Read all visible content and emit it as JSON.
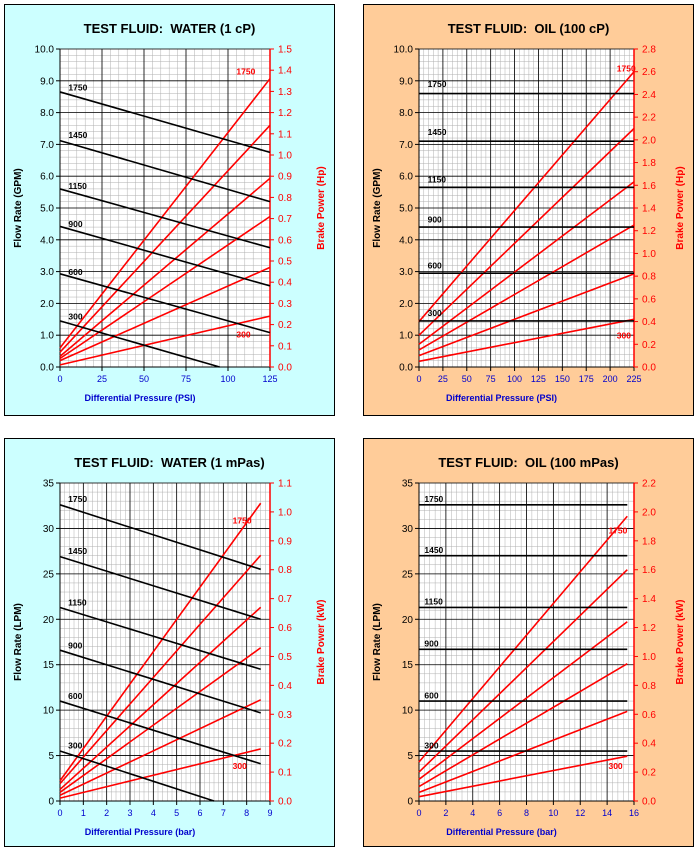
{
  "colors": {
    "water_panel_bg": "#ccffff",
    "oil_panel_bg": "#ffcc99",
    "plot_bg": "#ffffff",
    "flow_line": "#000000",
    "power_line": "#ff0000",
    "axis_left": "#000000",
    "axis_right": "#ff0000",
    "xlabel": "#0000cc"
  },
  "chart_data": [
    {
      "type": "line",
      "title": "TEST FLUID:  WATER (1 cP)",
      "xlabel": "Differential Pressure (PSI)",
      "ylabel": "Flow Rate (GPM)",
      "y2label": "Brake Power (Hp)",
      "xlim": [
        0,
        125
      ],
      "xticks": [
        "0",
        "25",
        "50",
        "75",
        "100",
        "125"
      ],
      "ylim": [
        0,
        10
      ],
      "yticks": [
        "0.0",
        "1.0",
        "2.0",
        "3.0",
        "4.0",
        "5.0",
        "6.0",
        "7.0",
        "8.0",
        "9.0",
        "10.0"
      ],
      "y2lim": [
        0,
        1.5
      ],
      "y2ticks": [
        "0.0",
        "0.1",
        "0.2",
        "0.3",
        "0.4",
        "0.5",
        "0.6",
        "0.7",
        "0.8",
        "0.9",
        "1.0",
        "1.1",
        "1.2",
        "1.3",
        "1.4",
        "1.5"
      ],
      "grid": true,
      "flow_series": [
        {
          "name": "1750",
          "x": [
            0,
            125
          ],
          "values": [
            8.65,
            6.75
          ]
        },
        {
          "name": "1450",
          "x": [
            0,
            125
          ],
          "values": [
            7.12,
            5.2
          ]
        },
        {
          "name": "1150",
          "x": [
            0,
            125
          ],
          "values": [
            5.6,
            3.75
          ]
        },
        {
          "name": "900",
          "x": [
            0,
            125
          ],
          "values": [
            4.42,
            2.55
          ]
        },
        {
          "name": "600",
          "x": [
            0,
            125
          ],
          "values": [
            2.93,
            1.08
          ]
        },
        {
          "name": "300",
          "x": [
            0,
            95
          ],
          "values": [
            1.45,
            0.0
          ]
        }
      ],
      "power_series": [
        {
          "name": "1750",
          "x": [
            0,
            125
          ],
          "values": [
            0.09,
            1.36
          ]
        },
        {
          "name": "1450",
          "x": [
            0,
            125
          ],
          "values": [
            0.07,
            1.14
          ]
        },
        {
          "name": "1150",
          "x": [
            0,
            125
          ],
          "values": [
            0.05,
            0.89
          ]
        },
        {
          "name": "900",
          "x": [
            0,
            125
          ],
          "values": [
            0.04,
            0.71
          ]
        },
        {
          "name": "600",
          "x": [
            0,
            125
          ],
          "values": [
            0.03,
            0.47
          ]
        },
        {
          "name": "300",
          "x": [
            0,
            125
          ],
          "values": [
            0.01,
            0.24
          ]
        }
      ],
      "annotations": [
        {
          "text": "1750",
          "color": "red",
          "x": 105,
          "y2": 1.38
        },
        {
          "text": "300",
          "color": "red",
          "x": 105,
          "y2": 0.14
        },
        {
          "text": "1750",
          "color": "black",
          "x": 5,
          "y": 8.7
        },
        {
          "text": "1450",
          "color": "black",
          "x": 5,
          "y": 7.2
        },
        {
          "text": "1150",
          "color": "black",
          "x": 5,
          "y": 5.6
        },
        {
          "text": "900",
          "color": "black",
          "x": 5,
          "y": 4.4
        },
        {
          "text": "600",
          "color": "black",
          "x": 5,
          "y": 2.9
        },
        {
          "text": "300",
          "color": "black",
          "x": 5,
          "y": 1.5
        }
      ]
    },
    {
      "type": "line",
      "title": "TEST FLUID:  OIL (100 cP)",
      "xlabel": "Differential Pressure (PSI)",
      "ylabel": "Flow Rate (GPM)",
      "y2label": "Brake Power (Hp)",
      "xlim": [
        0,
        225
      ],
      "xticks": [
        "0",
        "25",
        "50",
        "75",
        "100",
        "125",
        "150",
        "175",
        "200",
        "225"
      ],
      "ylim": [
        0,
        10
      ],
      "yticks": [
        "0.0",
        "1.0",
        "2.0",
        "3.0",
        "4.0",
        "5.0",
        "6.0",
        "7.0",
        "8.0",
        "9.0",
        "10.0"
      ],
      "y2lim": [
        0,
        2.8
      ],
      "y2ticks": [
        "0.0",
        "0.2",
        "0.4",
        "0.6",
        "0.8",
        "1.0",
        "1.2",
        "1.4",
        "1.6",
        "1.8",
        "2.0",
        "2.2",
        "2.4",
        "2.6",
        "2.8"
      ],
      "grid": true,
      "flow_series": [
        {
          "name": "1750",
          "x": [
            0,
            225
          ],
          "values": [
            8.6,
            8.6
          ]
        },
        {
          "name": "1450",
          "x": [
            0,
            225
          ],
          "values": [
            7.1,
            7.1
          ]
        },
        {
          "name": "1150",
          "x": [
            0,
            225
          ],
          "values": [
            5.65,
            5.65
          ]
        },
        {
          "name": "900",
          "x": [
            0,
            225
          ],
          "values": [
            4.4,
            4.4
          ]
        },
        {
          "name": "600",
          "x": [
            0,
            225
          ],
          "values": [
            2.95,
            2.95
          ]
        },
        {
          "name": "300",
          "x": [
            0,
            225
          ],
          "values": [
            1.45,
            1.45
          ]
        }
      ],
      "power_series": [
        {
          "name": "1750",
          "x": [
            0,
            225
          ],
          "values": [
            0.4,
            2.6
          ]
        },
        {
          "name": "1450",
          "x": [
            0,
            225
          ],
          "values": [
            0.28,
            2.1
          ]
        },
        {
          "name": "1150",
          "x": [
            0,
            225
          ],
          "values": [
            0.2,
            1.63
          ]
        },
        {
          "name": "900",
          "x": [
            0,
            225
          ],
          "values": [
            0.15,
            1.25
          ]
        },
        {
          "name": "600",
          "x": [
            0,
            225
          ],
          "values": [
            0.1,
            0.82
          ]
        },
        {
          "name": "300",
          "x": [
            0,
            225
          ],
          "values": [
            0.05,
            0.42
          ]
        }
      ],
      "annotations": [
        {
          "text": "1750",
          "color": "red",
          "x": 207,
          "y2": 2.6
        },
        {
          "text": "300",
          "color": "red",
          "x": 207,
          "y2": 0.25
        },
        {
          "text": "1750",
          "color": "black",
          "x": 9,
          "y": 8.8
        },
        {
          "text": "1450",
          "color": "black",
          "x": 9,
          "y": 7.3
        },
        {
          "text": "1150",
          "color": "black",
          "x": 9,
          "y": 5.8
        },
        {
          "text": "900",
          "color": "black",
          "x": 9,
          "y": 4.55
        },
        {
          "text": "600",
          "color": "black",
          "x": 9,
          "y": 3.1
        },
        {
          "text": "300",
          "color": "black",
          "x": 9,
          "y": 1.6
        }
      ]
    },
    {
      "type": "line",
      "title": "TEST FLUID:  WATER (1 mPas)",
      "xlabel": "Differential Pressure (bar)",
      "ylabel": "Flow Rate (LPM)",
      "y2label": "Brake Power (kW)",
      "xlim": [
        0,
        9
      ],
      "xticks": [
        "0",
        "1",
        "2",
        "3",
        "4",
        "5",
        "6",
        "7",
        "8",
        "9"
      ],
      "ylim": [
        0,
        35
      ],
      "yticks": [
        "0",
        "5",
        "10",
        "15",
        "20",
        "25",
        "30",
        "35"
      ],
      "y2lim": [
        0,
        1.1
      ],
      "y2ticks": [
        "0.0",
        "0.1",
        "0.2",
        "0.3",
        "0.4",
        "0.5",
        "0.6",
        "0.7",
        "0.8",
        "0.9",
        "1.0",
        "1.1"
      ],
      "grid": true,
      "flow_series": [
        {
          "name": "1750",
          "x": [
            0,
            8.6
          ],
          "values": [
            32.6,
            25.5
          ]
        },
        {
          "name": "1450",
          "x": [
            0,
            8.6
          ],
          "values": [
            26.9,
            20.0
          ]
        },
        {
          "name": "1150",
          "x": [
            0,
            8.6
          ],
          "values": [
            21.3,
            14.5
          ]
        },
        {
          "name": "900",
          "x": [
            0,
            8.6
          ],
          "values": [
            16.6,
            9.7
          ]
        },
        {
          "name": "600",
          "x": [
            0,
            8.6
          ],
          "values": [
            11.0,
            4.1
          ]
        },
        {
          "name": "300",
          "x": [
            0,
            6.6
          ],
          "values": [
            5.5,
            0.0
          ]
        }
      ],
      "power_series": [
        {
          "name": "1750",
          "x": [
            0,
            8.6
          ],
          "values": [
            0.07,
            1.03
          ]
        },
        {
          "name": "1450",
          "x": [
            0,
            8.6
          ],
          "values": [
            0.06,
            0.85
          ]
        },
        {
          "name": "1150",
          "x": [
            0,
            8.6
          ],
          "values": [
            0.04,
            0.67
          ]
        },
        {
          "name": "900",
          "x": [
            0,
            8.6
          ],
          "values": [
            0.03,
            0.53
          ]
        },
        {
          "name": "600",
          "x": [
            0,
            8.6
          ],
          "values": [
            0.02,
            0.35
          ]
        },
        {
          "name": "300",
          "x": [
            0,
            8.6
          ],
          "values": [
            0.01,
            0.18
          ]
        }
      ],
      "annotations": [
        {
          "text": "1750",
          "color": "red",
          "x": 7.4,
          "y2": 0.96
        },
        {
          "text": "300",
          "color": "red",
          "x": 7.4,
          "y2": 0.11
        },
        {
          "text": "1750",
          "color": "black",
          "x": 0.35,
          "y": 32.9
        },
        {
          "text": "1450",
          "color": "black",
          "x": 0.35,
          "y": 27.2
        },
        {
          "text": "1150",
          "color": "black",
          "x": 0.35,
          "y": 21.5
        },
        {
          "text": "900",
          "color": "black",
          "x": 0.35,
          "y": 16.8
        },
        {
          "text": "600",
          "color": "black",
          "x": 0.35,
          "y": 11.2
        },
        {
          "text": "300",
          "color": "black",
          "x": 0.35,
          "y": 5.8
        }
      ]
    },
    {
      "type": "line",
      "title": "TEST FLUID:  OIL (100 mPas)",
      "xlabel": "Differential Pressure (bar)",
      "ylabel": "Flow Rate (LPM)",
      "y2label": "Brake Power (kW)",
      "xlim": [
        0,
        16
      ],
      "xticks": [
        "0",
        "2",
        "4",
        "6",
        "8",
        "10",
        "12",
        "14",
        "16"
      ],
      "ylim": [
        0,
        35
      ],
      "yticks": [
        "0",
        "5",
        "10",
        "15",
        "20",
        "25",
        "30",
        "35"
      ],
      "y2lim": [
        0,
        2.2
      ],
      "y2ticks": [
        "0.0",
        "0.2",
        "0.4",
        "0.6",
        "0.8",
        "1.0",
        "1.2",
        "1.4",
        "1.6",
        "1.8",
        "2.0",
        "2.2"
      ],
      "grid": true,
      "flow_series": [
        {
          "name": "1750",
          "x": [
            0,
            15.5
          ],
          "values": [
            32.6,
            32.6
          ]
        },
        {
          "name": "1450",
          "x": [
            0,
            15.5
          ],
          "values": [
            27.0,
            27.0
          ]
        },
        {
          "name": "1150",
          "x": [
            0,
            15.5
          ],
          "values": [
            21.3,
            21.3
          ]
        },
        {
          "name": "900",
          "x": [
            0,
            15.5
          ],
          "values": [
            16.7,
            16.7
          ]
        },
        {
          "name": "600",
          "x": [
            0,
            15.5
          ],
          "values": [
            11.0,
            11.0
          ]
        },
        {
          "name": "300",
          "x": [
            0,
            15.5
          ],
          "values": [
            5.5,
            5.5
          ]
        }
      ],
      "power_series": [
        {
          "name": "1750",
          "x": [
            0,
            15.5
          ],
          "values": [
            0.27,
            1.97
          ]
        },
        {
          "name": "1450",
          "x": [
            0,
            15.5
          ],
          "values": [
            0.2,
            1.6
          ]
        },
        {
          "name": "1150",
          "x": [
            0,
            15.5
          ],
          "values": [
            0.15,
            1.24
          ]
        },
        {
          "name": "900",
          "x": [
            0,
            15.5
          ],
          "values": [
            0.1,
            0.95
          ]
        },
        {
          "name": "600",
          "x": [
            0,
            15.5
          ],
          "values": [
            0.06,
            0.62
          ]
        },
        {
          "name": "300",
          "x": [
            0,
            15.5
          ],
          "values": [
            0.03,
            0.31
          ]
        }
      ],
      "annotations": [
        {
          "text": "1750",
          "color": "red",
          "x": 14.1,
          "y2": 1.85
        },
        {
          "text": "300",
          "color": "red",
          "x": 14.1,
          "y2": 0.22
        },
        {
          "text": "1750",
          "color": "black",
          "x": 0.4,
          "y": 32.9
        },
        {
          "text": "1450",
          "color": "black",
          "x": 0.4,
          "y": 27.3
        },
        {
          "text": "1150",
          "color": "black",
          "x": 0.4,
          "y": 21.6
        },
        {
          "text": "900",
          "color": "black",
          "x": 0.4,
          "y": 17.0
        },
        {
          "text": "600",
          "color": "black",
          "x": 0.4,
          "y": 11.3
        },
        {
          "text": "300",
          "color": "black",
          "x": 0.4,
          "y": 5.8
        }
      ]
    }
  ]
}
